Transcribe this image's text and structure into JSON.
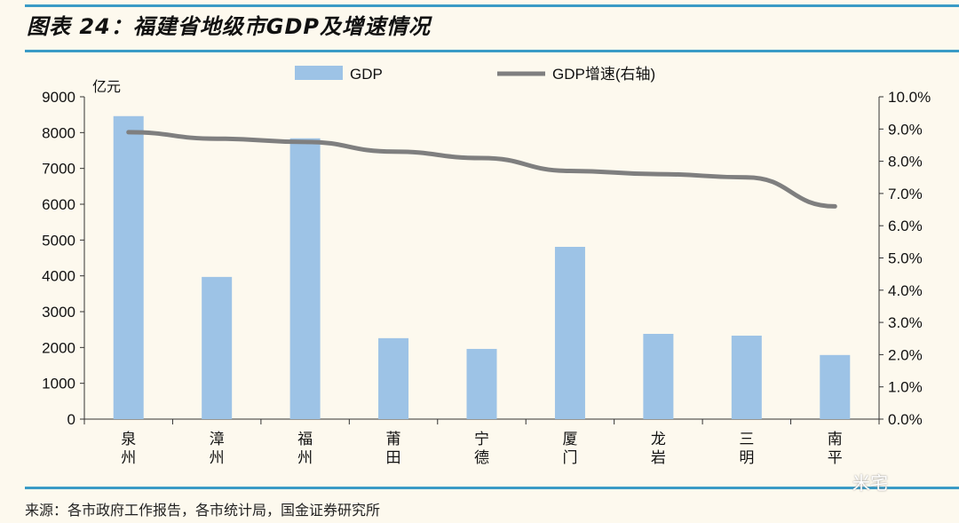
{
  "title": "图表 24：福建省地级市GDP及增速情况",
  "source": "来源：各市政府工作报告，各市统计局，国金证券研究所",
  "watermark": "米宅",
  "colors": {
    "bar": "#9dc3e6",
    "line": "#7f7f7f",
    "rule": "#3a9bc6",
    "background": "#fdf9ee"
  },
  "chart_data": {
    "type": "bar+line",
    "categories": [
      "泉州",
      "漳州",
      "福州",
      "莆田",
      "宁德",
      "厦门",
      "龙岩",
      "三明",
      "南平"
    ],
    "series": [
      {
        "name": "GDP",
        "type": "bar",
        "axis": "left",
        "values": [
          8460,
          3970,
          7840,
          2260,
          1960,
          4810,
          2380,
          2330,
          1790
        ]
      },
      {
        "name": "GDP增速(右轴)",
        "type": "line",
        "axis": "right",
        "values": [
          8.9,
          8.7,
          8.6,
          8.3,
          8.1,
          7.7,
          7.6,
          7.5,
          6.6
        ]
      }
    ],
    "left_axis": {
      "unit_label": "亿元",
      "ylim": [
        0,
        9000
      ],
      "ticks": [
        "0",
        "1000",
        "2000",
        "3000",
        "4000",
        "5000",
        "6000",
        "7000",
        "8000",
        "9000"
      ]
    },
    "right_axis": {
      "ylim": [
        0,
        10
      ],
      "ticks": [
        "0.0%",
        "1.0%",
        "2.0%",
        "3.0%",
        "4.0%",
        "5.0%",
        "6.0%",
        "7.0%",
        "8.0%",
        "9.0%",
        "10.0%"
      ]
    },
    "legend": "top",
    "grid": false
  }
}
